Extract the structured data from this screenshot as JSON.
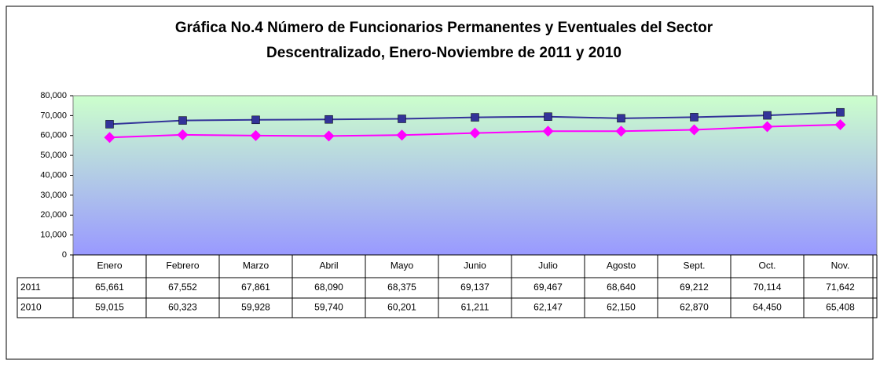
{
  "chart_data": {
    "type": "line",
    "title": [
      "Gráfica No.4 Número de Funcionarios Permanentes y Eventuales del Sector",
      "Descentralizado, Enero-Noviembre de 2011 y 2010"
    ],
    "categories": [
      "Enero",
      "Febrero",
      "Marzo",
      "Abril",
      "Mayo",
      "Junio",
      "Julio",
      "Agosto",
      "Sept.",
      "Oct.",
      "Nov."
    ],
    "series": [
      {
        "name": "2011",
        "color": "#333399",
        "marker": "square",
        "values": [
          65661,
          67552,
          67861,
          68090,
          68375,
          69137,
          69467,
          68640,
          69212,
          70114,
          71642
        ],
        "value_labels": [
          "65,661",
          "67,552",
          "67,861",
          "68,090",
          "68,375",
          "69,137",
          "69,467",
          "68,640",
          "69,212",
          "70,114",
          "71,642"
        ]
      },
      {
        "name": "2010",
        "color": "#ff00ff",
        "marker": "diamond",
        "values": [
          59015,
          60323,
          59928,
          59740,
          60201,
          61211,
          62147,
          62150,
          62870,
          64450,
          65408
        ],
        "value_labels": [
          "59,015",
          "60,323",
          "59,928",
          "59,740",
          "60,201",
          "61,211",
          "62,147",
          "62,150",
          "62,870",
          "64,450",
          "65,408"
        ]
      }
    ],
    "ylim": [
      0,
      80000
    ],
    "yticks": [
      0,
      {
        "value": 10000,
        "label": "10,000"
      },
      {
        "value": 20000,
        "label": "20,000"
      },
      {
        "value": 30000,
        "label": "30,000"
      },
      {
        "value": 40000,
        "label": "40,000"
      },
      {
        "value": 50000,
        "label": "50,000"
      },
      {
        "value": 60000,
        "label": "60,000"
      },
      {
        "value": 70000,
        "label": "70,000"
      },
      {
        "value": 80000,
        "label": "80,000"
      }
    ],
    "grid": false
  }
}
